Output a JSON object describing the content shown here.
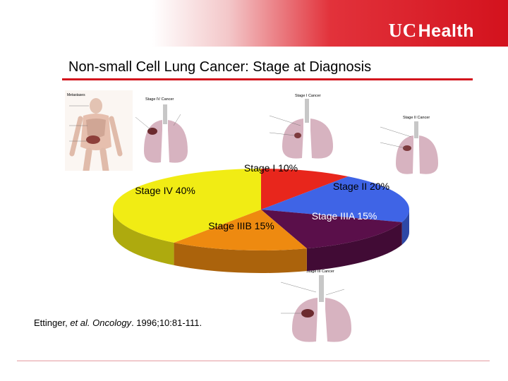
{
  "brand": {
    "prefix": "UC",
    "name": "Health",
    "colors": {
      "brand_red": "#d3121d"
    }
  },
  "page": {
    "title": "Non-small Cell Lung Cancer: Stage at Diagnosis"
  },
  "citation": {
    "authors": "Ettinger,",
    "etal": "et al.",
    "journal": "Oncology",
    "rest": ". 1996;10:81-111."
  },
  "illustrations": {
    "stage4": {
      "title": "Stage IV Cancer"
    },
    "stage1": {
      "title": "Stage I Cancer"
    },
    "stage2": {
      "title": "Stage II Cancer"
    },
    "stage3": {
      "title": "Stage III Cancer"
    },
    "body": {
      "title": "Metastases"
    }
  },
  "chart_data": {
    "type": "pie",
    "title": "",
    "slices": [
      {
        "label": "Stage I 10%",
        "category": "Stage I",
        "value": 10,
        "color": "#e8261c"
      },
      {
        "label": "Stage II 20%",
        "category": "Stage II",
        "value": 20,
        "color": "#3f64e6"
      },
      {
        "label": "Stage IIIA 15%",
        "category": "Stage IIIA",
        "value": 15,
        "color": "#5a0f4a"
      },
      {
        "label": "Stage IIIB 15%",
        "category": "Stage IIIB",
        "value": 15,
        "color": "#ee8a10"
      },
      {
        "label": "Stage IV 40%",
        "category": "Stage IV",
        "value": 40,
        "color": "#f1ec14"
      }
    ],
    "style": "3d-tilted"
  }
}
